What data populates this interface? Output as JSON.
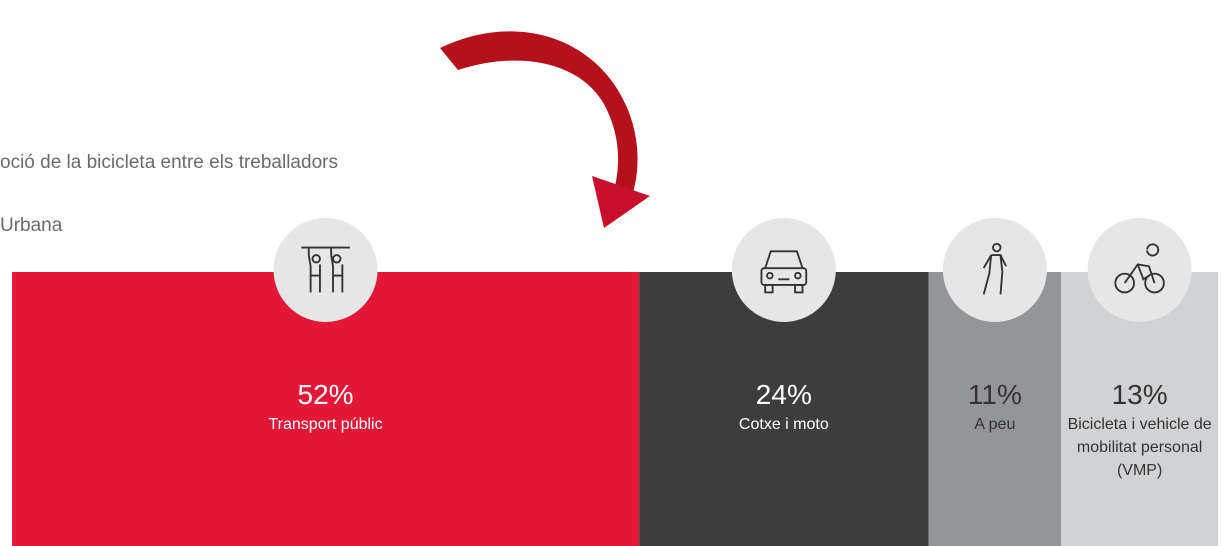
{
  "chart_data": {
    "type": "bar",
    "title": "oció de la bicicleta entre els treballadors",
    "subtitle": "Urbana",
    "categories": [
      "Transport públic",
      "Cotxe i moto",
      "A peu",
      "Bicicleta i vehicle de mobilitat personal (VMP)"
    ],
    "values": [
      52,
      24,
      11,
      13
    ],
    "value_labels": [
      "52%",
      "24%",
      "11%",
      "13%"
    ],
    "colors": [
      "#e31837",
      "#3d3d3d",
      "#939598",
      "#d1d2d4"
    ],
    "label_colors": [
      "#ffffff",
      "#ffffff",
      "#333333",
      "#333333"
    ]
  }
}
